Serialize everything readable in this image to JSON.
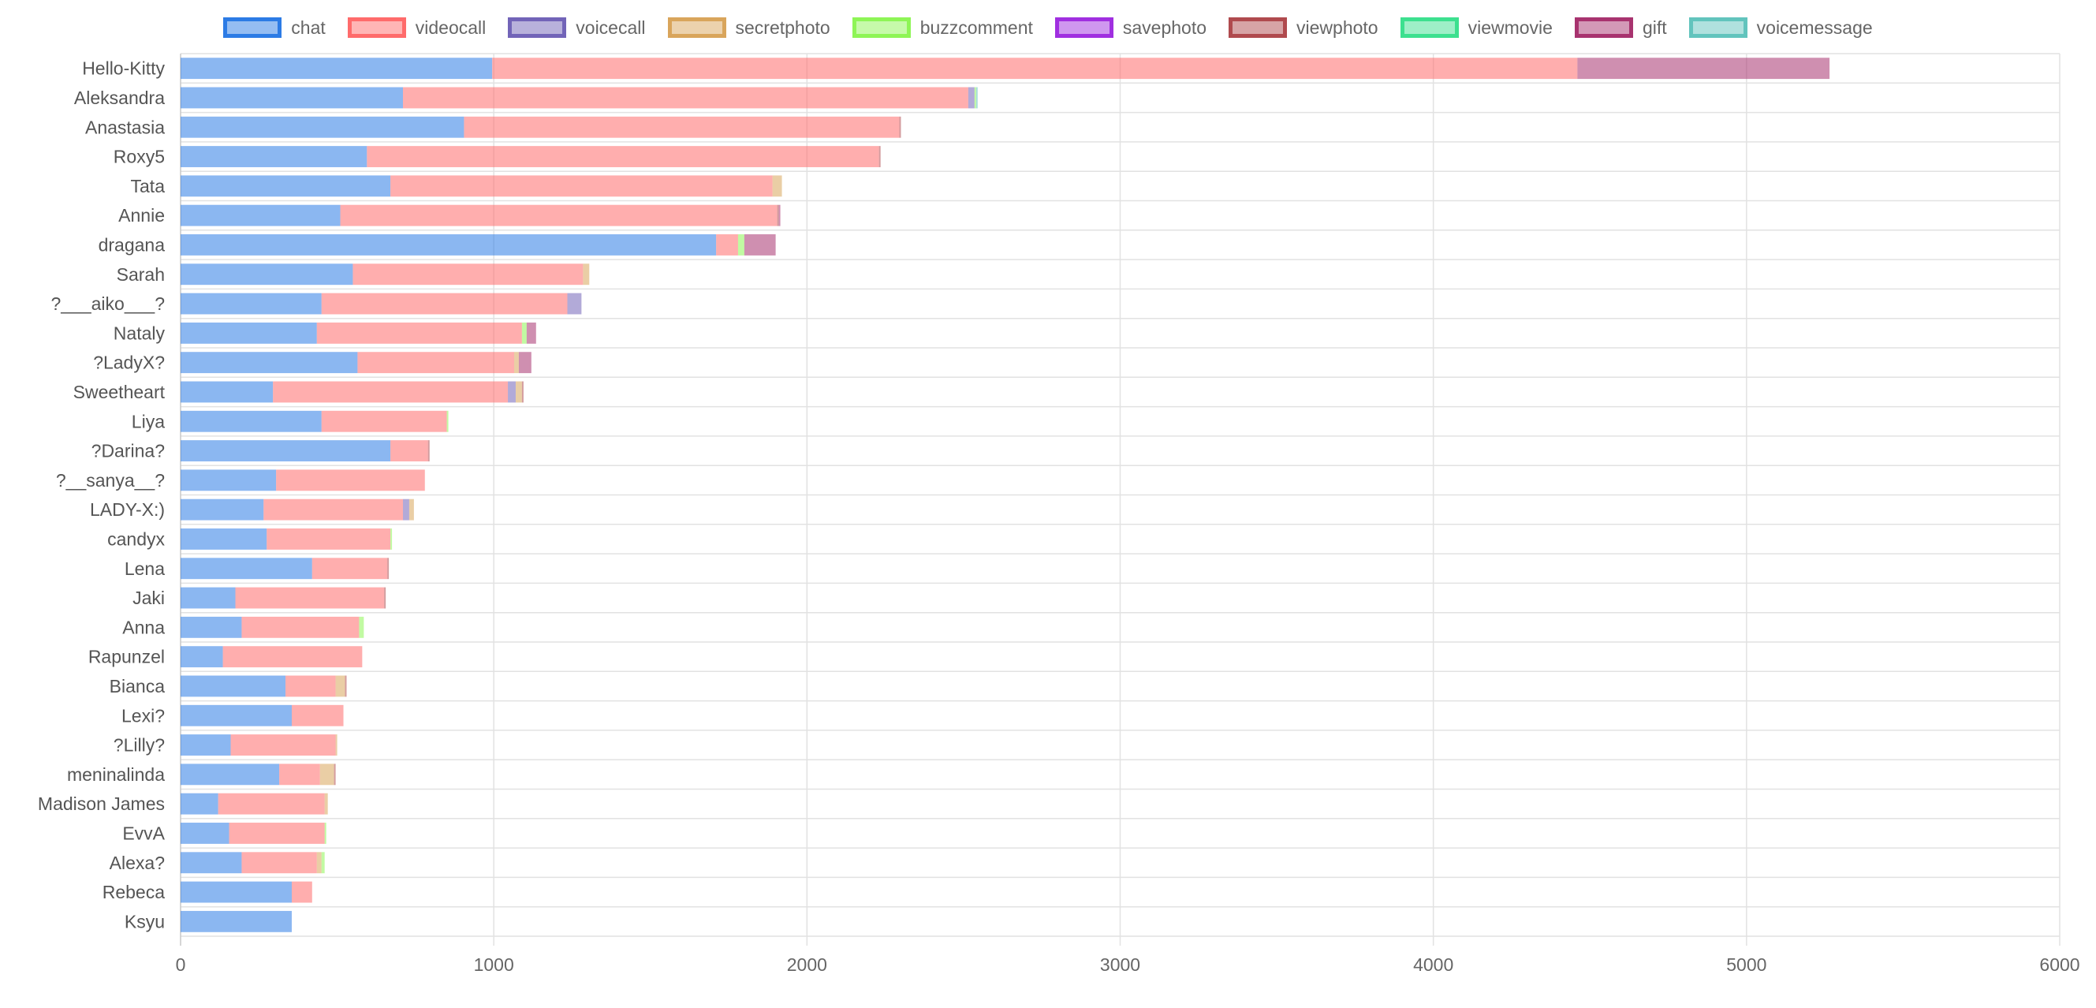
{
  "chart_data": {
    "type": "bar",
    "orientation": "horizontal",
    "stacked": true,
    "legend_position": "top",
    "grid": true,
    "xlim": [
      0,
      6000
    ],
    "x_ticks": [
      0,
      1000,
      2000,
      3000,
      4000,
      5000,
      6000
    ],
    "categories": [
      "Hello-Kitty",
      "Aleksandra",
      "Anastasia",
      "Roxy5",
      "Tata",
      "Annie",
      "dragana",
      "Sarah",
      "?___aiko___?",
      "Nataly",
      "?LadyX?",
      "Sweetheart",
      "Liya",
      "?Darina?",
      "?__sanya__?",
      "LADY-X:)",
      "candyx",
      "Lena",
      "Jaki",
      "Anna",
      "Rapunzel",
      "Bianca",
      "Lexi?",
      "?Lilly?",
      "meninalinda",
      "Madison James",
      "EvvA",
      "Alexa?",
      "Rebeca",
      "Ksyu"
    ],
    "series": [
      {
        "name": "chat",
        "color": "#2c7be5",
        "values": [
          995,
          710,
          905,
          595,
          670,
          510,
          1710,
          550,
          450,
          435,
          565,
          295,
          450,
          670,
          305,
          265,
          275,
          420,
          175,
          195,
          135,
          335,
          355,
          160,
          315,
          120,
          155,
          195,
          355,
          355
        ]
      },
      {
        "name": "videocall",
        "color": "#ff6b6b",
        "values": [
          3465,
          1805,
          1390,
          1635,
          1220,
          1395,
          70,
          735,
          785,
          655,
          500,
          750,
          400,
          120,
          475,
          445,
          395,
          240,
          475,
          375,
          445,
          160,
          165,
          335,
          130,
          340,
          305,
          240,
          65,
          0
        ]
      },
      {
        "name": "voicecall",
        "color": "#7264b8",
        "values": [
          0,
          20,
          0,
          0,
          0,
          0,
          0,
          0,
          45,
          0,
          0,
          25,
          0,
          0,
          0,
          20,
          0,
          0,
          0,
          0,
          0,
          0,
          0,
          0,
          0,
          0,
          0,
          0,
          0,
          0
        ]
      },
      {
        "name": "secretphoto",
        "color": "#d9a55b",
        "values": [
          0,
          0,
          0,
          0,
          30,
          0,
          0,
          20,
          0,
          0,
          15,
          20,
          0,
          0,
          0,
          15,
          0,
          0,
          0,
          0,
          0,
          30,
          0,
          5,
          45,
          10,
          0,
          15,
          0,
          0
        ]
      },
      {
        "name": "buzzcomment",
        "color": "#8ef556",
        "values": [
          0,
          5,
          0,
          0,
          0,
          0,
          20,
          0,
          0,
          15,
          0,
          0,
          5,
          0,
          0,
          0,
          5,
          0,
          0,
          15,
          0,
          0,
          0,
          0,
          0,
          0,
          5,
          10,
          0,
          0
        ]
      },
      {
        "name": "savephoto",
        "color": "#a02fe0",
        "values": [
          0,
          0,
          0,
          0,
          0,
          0,
          0,
          0,
          0,
          0,
          0,
          0,
          0,
          0,
          0,
          0,
          0,
          0,
          0,
          0,
          0,
          0,
          0,
          0,
          0,
          0,
          0,
          0,
          0,
          0
        ]
      },
      {
        "name": "viewphoto",
        "color": "#b04a4e",
        "values": [
          0,
          0,
          5,
          5,
          0,
          5,
          0,
          0,
          0,
          0,
          0,
          5,
          0,
          5,
          0,
          0,
          0,
          5,
          5,
          0,
          0,
          5,
          0,
          0,
          5,
          0,
          0,
          0,
          0,
          0
        ]
      },
      {
        "name": "viewmovie",
        "color": "#3de08f",
        "values": [
          0,
          0,
          0,
          0,
          0,
          0,
          0,
          0,
          0,
          0,
          0,
          0,
          0,
          0,
          0,
          0,
          0,
          0,
          0,
          0,
          0,
          0,
          0,
          0,
          0,
          0,
          0,
          0,
          0,
          0
        ]
      },
      {
        "name": "gift",
        "color": "#a8336f",
        "values": [
          805,
          0,
          0,
          0,
          0,
          5,
          100,
          0,
          0,
          30,
          40,
          0,
          0,
          0,
          0,
          0,
          0,
          0,
          0,
          0,
          0,
          0,
          0,
          0,
          0,
          0,
          0,
          0,
          0,
          0
        ]
      },
      {
        "name": "voicemessage",
        "color": "#62c4bd",
        "values": [
          0,
          5,
          0,
          0,
          0,
          0,
          0,
          0,
          0,
          0,
          0,
          0,
          0,
          0,
          0,
          0,
          0,
          0,
          0,
          0,
          0,
          0,
          0,
          0,
          0,
          0,
          0,
          0,
          0,
          0
        ]
      }
    ]
  }
}
